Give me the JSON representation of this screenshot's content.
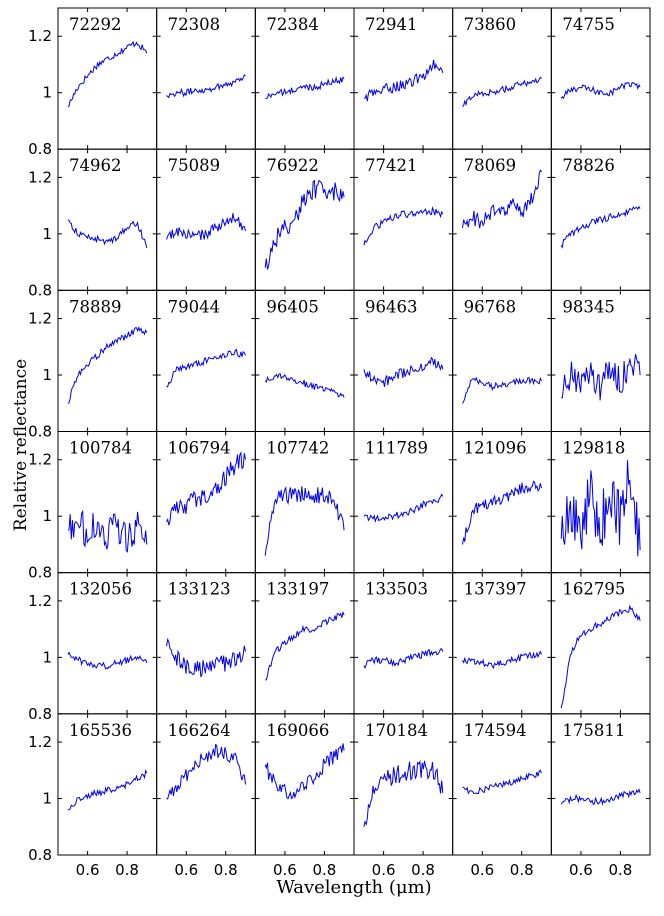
{
  "chart_data": {
    "type": "line",
    "layout": "grid 6x6 small multiples",
    "xlabel": "Wavelength (μm)",
    "ylabel": "Relative reflectance",
    "xlim": [
      0.45,
      0.95
    ],
    "ylim": [
      0.8,
      1.3
    ],
    "xticks": [
      "0.6",
      "0.8"
    ],
    "yticks": [
      "0.8",
      "1",
      "1.2"
    ],
    "line_color": "#0000ee",
    "grid": false,
    "panels": [
      {
        "name": "72292",
        "x": [
          0.5,
          0.55,
          0.6,
          0.65,
          0.7,
          0.75,
          0.8,
          0.85,
          0.9
        ],
        "values": [
          0.95,
          1.02,
          1.06,
          1.1,
          1.12,
          1.14,
          1.16,
          1.18,
          1.14
        ]
      },
      {
        "name": "72308",
        "x": [
          0.5,
          0.55,
          0.6,
          0.65,
          0.7,
          0.75,
          0.8,
          0.85,
          0.9
        ],
        "values": [
          0.99,
          1.0,
          1.0,
          1.01,
          1.01,
          1.02,
          1.03,
          1.04,
          1.06
        ]
      },
      {
        "name": "72384",
        "x": [
          0.5,
          0.55,
          0.6,
          0.65,
          0.7,
          0.75,
          0.8,
          0.85,
          0.9
        ],
        "values": [
          0.98,
          1.0,
          1.0,
          1.01,
          1.02,
          1.02,
          1.03,
          1.04,
          1.05
        ]
      },
      {
        "name": "72941",
        "x": [
          0.5,
          0.55,
          0.6,
          0.65,
          0.7,
          0.75,
          0.8,
          0.85,
          0.9
        ],
        "values": [
          0.98,
          1.0,
          1.01,
          1.02,
          1.03,
          1.04,
          1.06,
          1.1,
          1.07
        ]
      },
      {
        "name": "73860",
        "x": [
          0.5,
          0.55,
          0.6,
          0.65,
          0.7,
          0.75,
          0.8,
          0.85,
          0.9
        ],
        "values": [
          0.95,
          0.99,
          1.0,
          1.0,
          1.01,
          1.02,
          1.03,
          1.04,
          1.05
        ]
      },
      {
        "name": "74755",
        "x": [
          0.5,
          0.55,
          0.6,
          0.65,
          0.7,
          0.75,
          0.8,
          0.85,
          0.9
        ],
        "values": [
          0.98,
          1.01,
          1.02,
          1.01,
          1.0,
          1.0,
          1.02,
          1.03,
          1.02
        ]
      },
      {
        "name": "74962",
        "x": [
          0.5,
          0.55,
          0.6,
          0.65,
          0.7,
          0.75,
          0.8,
          0.85,
          0.9
        ],
        "values": [
          1.05,
          1.0,
          0.99,
          0.98,
          0.97,
          0.99,
          1.02,
          1.04,
          0.95
        ]
      },
      {
        "name": "75089",
        "x": [
          0.5,
          0.55,
          0.6,
          0.65,
          0.7,
          0.75,
          0.8,
          0.85,
          0.9
        ],
        "values": [
          0.98,
          1.01,
          1.0,
          0.99,
          1.0,
          1.02,
          1.04,
          1.06,
          1.01
        ]
      },
      {
        "name": "76922",
        "x": [
          0.5,
          0.55,
          0.6,
          0.65,
          0.7,
          0.75,
          0.8,
          0.85,
          0.9
        ],
        "values": [
          0.88,
          0.98,
          1.02,
          1.06,
          1.12,
          1.16,
          1.16,
          1.15,
          1.13
        ]
      },
      {
        "name": "77421",
        "x": [
          0.5,
          0.55,
          0.6,
          0.65,
          0.7,
          0.75,
          0.8,
          0.85,
          0.9
        ],
        "values": [
          0.96,
          1.02,
          1.04,
          1.06,
          1.07,
          1.07,
          1.08,
          1.08,
          1.07
        ]
      },
      {
        "name": "78069",
        "x": [
          0.5,
          0.55,
          0.6,
          0.65,
          0.7,
          0.75,
          0.8,
          0.85,
          0.9
        ],
        "values": [
          1.02,
          1.06,
          1.04,
          1.08,
          1.07,
          1.1,
          1.08,
          1.12,
          1.22
        ]
      },
      {
        "name": "78826",
        "x": [
          0.5,
          0.55,
          0.6,
          0.65,
          0.7,
          0.75,
          0.8,
          0.85,
          0.9
        ],
        "values": [
          0.96,
          1.0,
          1.02,
          1.04,
          1.05,
          1.06,
          1.07,
          1.08,
          1.09
        ]
      },
      {
        "name": "78889",
        "x": [
          0.5,
          0.55,
          0.6,
          0.65,
          0.7,
          0.75,
          0.8,
          0.85,
          0.9
        ],
        "values": [
          0.9,
          1.0,
          1.04,
          1.07,
          1.1,
          1.12,
          1.14,
          1.16,
          1.15
        ]
      },
      {
        "name": "79044",
        "x": [
          0.5,
          0.55,
          0.6,
          0.65,
          0.7,
          0.75,
          0.8,
          0.85,
          0.9
        ],
        "values": [
          0.96,
          1.02,
          1.03,
          1.04,
          1.05,
          1.06,
          1.07,
          1.08,
          1.07
        ]
      },
      {
        "name": "96405",
        "x": [
          0.5,
          0.55,
          0.6,
          0.65,
          0.7,
          0.75,
          0.8,
          0.85,
          0.9
        ],
        "values": [
          0.98,
          1.0,
          0.99,
          0.98,
          0.97,
          0.96,
          0.95,
          0.94,
          0.92
        ]
      },
      {
        "name": "96463",
        "x": [
          0.5,
          0.55,
          0.6,
          0.65,
          0.7,
          0.75,
          0.8,
          0.85,
          0.9
        ],
        "values": [
          1.02,
          0.98,
          0.97,
          1.0,
          1.01,
          1.02,
          1.03,
          1.05,
          1.02
        ]
      },
      {
        "name": "96768",
        "x": [
          0.5,
          0.55,
          0.6,
          0.65,
          0.7,
          0.75,
          0.8,
          0.85,
          0.9
        ],
        "values": [
          0.9,
          0.99,
          0.97,
          0.96,
          0.97,
          0.97,
          0.98,
          0.98,
          0.98
        ]
      },
      {
        "name": "98345",
        "x": [
          0.5,
          0.55,
          0.6,
          0.65,
          0.7,
          0.75,
          0.8,
          0.85,
          0.9
        ],
        "values": [
          0.92,
          1.0,
          0.95,
          1.02,
          0.96,
          1.04,
          0.98,
          1.05,
          1.0
        ]
      },
      {
        "name": "100784",
        "x": [
          0.5,
          0.55,
          0.6,
          0.65,
          0.7,
          0.75,
          0.8,
          0.85,
          0.9
        ],
        "values": [
          0.95,
          0.98,
          0.94,
          0.99,
          0.93,
          0.97,
          0.92,
          0.96,
          0.9
        ]
      },
      {
        "name": "106794",
        "x": [
          0.5,
          0.55,
          0.6,
          0.65,
          0.7,
          0.75,
          0.8,
          0.85,
          0.9
        ],
        "values": [
          0.98,
          1.02,
          1.04,
          1.06,
          1.08,
          1.1,
          1.14,
          1.18,
          1.2
        ]
      },
      {
        "name": "107742",
        "x": [
          0.5,
          0.55,
          0.6,
          0.65,
          0.7,
          0.75,
          0.8,
          0.85,
          0.9
        ],
        "values": [
          0.86,
          1.06,
          1.07,
          1.08,
          1.08,
          1.07,
          1.08,
          1.06,
          0.95
        ]
      },
      {
        "name": "111789",
        "x": [
          0.5,
          0.55,
          0.6,
          0.65,
          0.7,
          0.75,
          0.8,
          0.85,
          0.9
        ],
        "values": [
          1.0,
          0.99,
          0.99,
          1.0,
          1.01,
          1.02,
          1.04,
          1.05,
          1.07
        ]
      },
      {
        "name": "121096",
        "x": [
          0.5,
          0.55,
          0.6,
          0.65,
          0.7,
          0.75,
          0.8,
          0.85,
          0.9
        ],
        "values": [
          0.9,
          1.02,
          1.04,
          1.05,
          1.06,
          1.08,
          1.1,
          1.11,
          1.1
        ]
      },
      {
        "name": "129818",
        "x": [
          0.5,
          0.55,
          0.6,
          0.65,
          0.7,
          0.75,
          0.8,
          0.85,
          0.9
        ],
        "values": [
          0.92,
          1.05,
          0.95,
          1.08,
          0.96,
          1.1,
          0.98,
          1.18,
          0.88
        ]
      },
      {
        "name": "132056",
        "x": [
          0.5,
          0.55,
          0.6,
          0.65,
          0.7,
          0.75,
          0.8,
          0.85,
          0.9
        ],
        "values": [
          1.01,
          0.99,
          0.98,
          0.97,
          0.97,
          0.98,
          0.99,
          1.0,
          0.98
        ]
      },
      {
        "name": "133123",
        "x": [
          0.5,
          0.55,
          0.6,
          0.65,
          0.7,
          0.75,
          0.8,
          0.85,
          0.9
        ],
        "values": [
          1.04,
          1.0,
          0.97,
          0.96,
          0.96,
          0.97,
          0.98,
          0.99,
          1.02
        ]
      },
      {
        "name": "133197",
        "x": [
          0.5,
          0.55,
          0.6,
          0.65,
          0.7,
          0.75,
          0.8,
          0.85,
          0.9
        ],
        "values": [
          0.92,
          1.02,
          1.05,
          1.08,
          1.1,
          1.1,
          1.12,
          1.14,
          1.15
        ]
      },
      {
        "name": "133503",
        "x": [
          0.5,
          0.55,
          0.6,
          0.65,
          0.7,
          0.75,
          0.8,
          0.85,
          0.9
        ],
        "values": [
          0.97,
          0.99,
          0.99,
          0.98,
          0.99,
          1.0,
          1.01,
          1.02,
          1.02
        ]
      },
      {
        "name": "137397",
        "x": [
          0.5,
          0.55,
          0.6,
          0.65,
          0.7,
          0.75,
          0.8,
          0.85,
          0.9
        ],
        "values": [
          0.99,
          0.99,
          0.98,
          0.97,
          0.98,
          0.99,
          1.0,
          1.01,
          1.01
        ]
      },
      {
        "name": "162795",
        "x": [
          0.5,
          0.55,
          0.6,
          0.65,
          0.7,
          0.75,
          0.8,
          0.85,
          0.9
        ],
        "values": [
          0.82,
          1.02,
          1.08,
          1.1,
          1.12,
          1.14,
          1.16,
          1.17,
          1.13
        ]
      },
      {
        "name": "165536",
        "x": [
          0.5,
          0.55,
          0.6,
          0.65,
          0.7,
          0.75,
          0.8,
          0.85,
          0.9
        ],
        "values": [
          0.96,
          1.0,
          1.01,
          1.02,
          1.03,
          1.04,
          1.05,
          1.07,
          1.09
        ]
      },
      {
        "name": "166264",
        "x": [
          0.5,
          0.55,
          0.6,
          0.65,
          0.7,
          0.75,
          0.8,
          0.85,
          0.9
        ],
        "values": [
          1.0,
          1.04,
          1.08,
          1.12,
          1.15,
          1.17,
          1.16,
          1.14,
          1.05
        ]
      },
      {
        "name": "169066",
        "x": [
          0.5,
          0.55,
          0.6,
          0.65,
          0.7,
          0.75,
          0.8,
          0.85,
          0.9
        ],
        "values": [
          1.12,
          1.05,
          1.03,
          1.02,
          1.04,
          1.08,
          1.12,
          1.15,
          1.17
        ]
      },
      {
        "name": "170184",
        "x": [
          0.5,
          0.55,
          0.6,
          0.65,
          0.7,
          0.75,
          0.8,
          0.85,
          0.9
        ],
        "values": [
          0.9,
          1.04,
          1.06,
          1.08,
          1.09,
          1.1,
          1.1,
          1.11,
          1.02
        ]
      },
      {
        "name": "174594",
        "x": [
          0.5,
          0.55,
          0.6,
          0.65,
          0.7,
          0.75,
          0.8,
          0.85,
          0.9
        ],
        "values": [
          1.04,
          1.02,
          1.03,
          1.04,
          1.05,
          1.06,
          1.07,
          1.08,
          1.09
        ]
      },
      {
        "name": "175811",
        "x": [
          0.5,
          0.55,
          0.6,
          0.65,
          0.7,
          0.75,
          0.8,
          0.85,
          0.9
        ],
        "values": [
          0.98,
          1.0,
          1.0,
          0.99,
          0.99,
          1.0,
          1.01,
          1.02,
          1.02
        ]
      }
    ]
  }
}
